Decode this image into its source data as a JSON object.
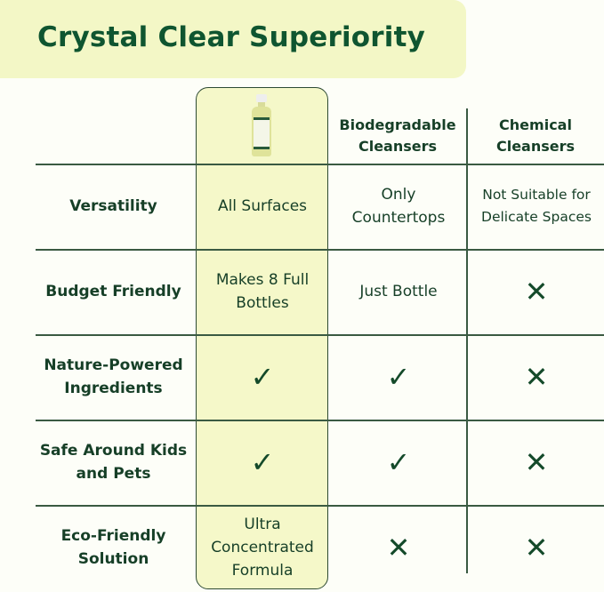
{
  "title": "Crystal Clear Superiority",
  "colors": {
    "accent_green": "#0f5530",
    "highlight": "#f5f8c9",
    "title_bg": "#f3f7c6"
  },
  "columns": [
    "",
    "Biodegradable Cleansers",
    "Chemical Cleansers"
  ],
  "product_image": "cleaner-bottle",
  "rows": [
    {
      "label": "Versatility",
      "cells": [
        "All Surfaces",
        "Only Countertops",
        "Not Suitable for Delicate Spaces"
      ]
    },
    {
      "label": "Budget Friendly",
      "cells": [
        "Makes 8 Full Bottles",
        "Just Bottle",
        "✕"
      ]
    },
    {
      "label": "Nature-Powered Ingredients",
      "cells": [
        "✓",
        "✓",
        "✕"
      ]
    },
    {
      "label": "Safe Around Kids and Pets",
      "cells": [
        "✓",
        "✓",
        "✕"
      ]
    },
    {
      "label": "Eco-Friendly Solution",
      "cells": [
        "Ultra Concentrated Formula",
        "✕",
        "✕"
      ]
    }
  ]
}
